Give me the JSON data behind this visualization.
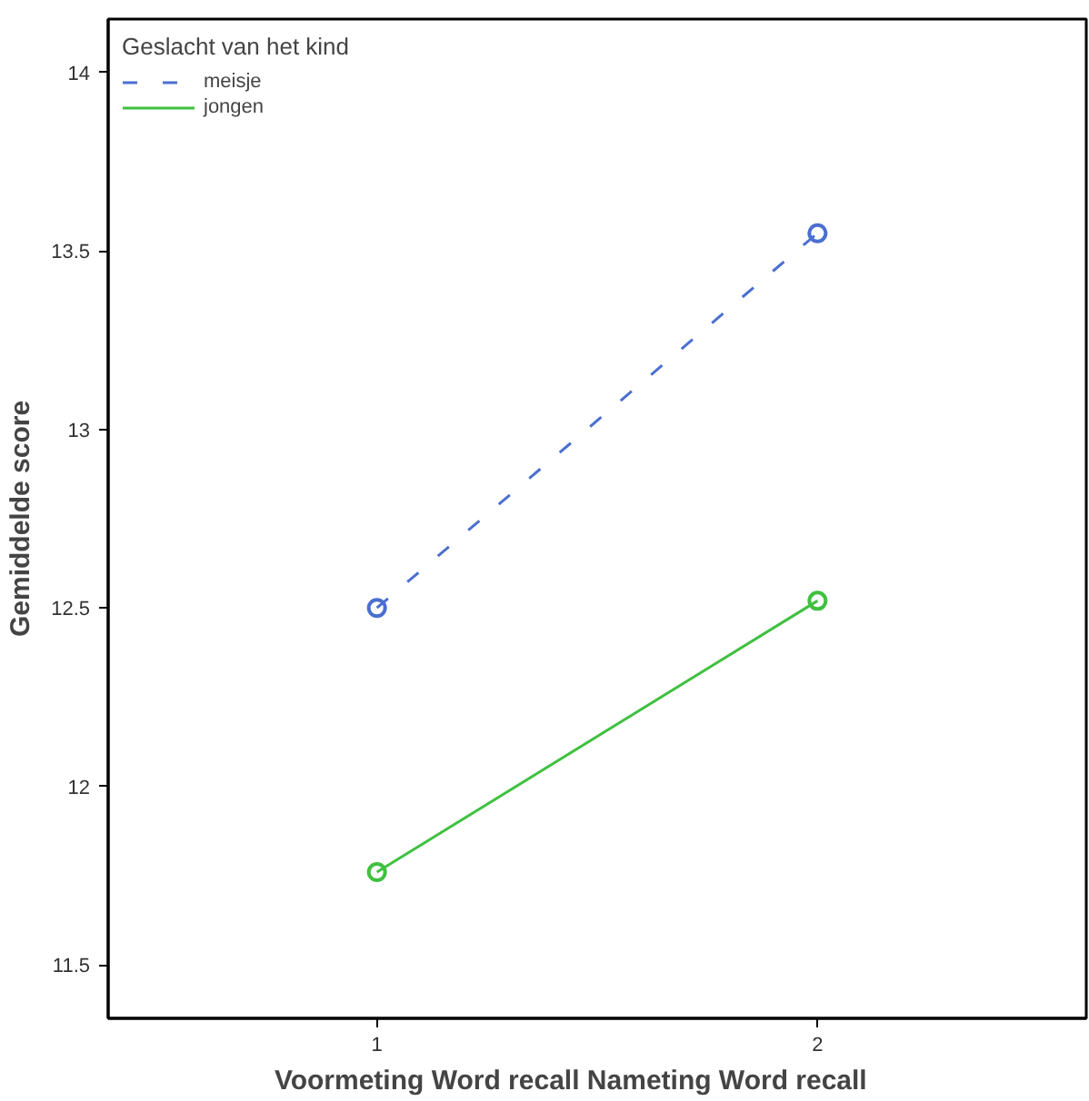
{
  "chart_data": {
    "type": "line",
    "xlabel": "Voormeting Word recall        Nameting Word recall",
    "ylabel": "Gemiddelde score",
    "legend_title": "Geslacht van het kind",
    "x": [
      1,
      2
    ],
    "xlim": [
      0.39,
      2.61
    ],
    "xticks": [
      1,
      2
    ],
    "ylim": [
      11.35,
      14.15
    ],
    "yticks": [
      11.5,
      12,
      12.5,
      13,
      13.5,
      14
    ],
    "series": [
      {
        "name": "meisje",
        "color": "#4a6fd0",
        "values": [
          12.5,
          13.55
        ],
        "line_style": "dashed"
      },
      {
        "name": "jongen",
        "color": "#40c040",
        "values": [
          11.76,
          12.52
        ],
        "line_style": "solid"
      }
    ],
    "marker": "circle",
    "grid": false,
    "legend": "top left"
  }
}
